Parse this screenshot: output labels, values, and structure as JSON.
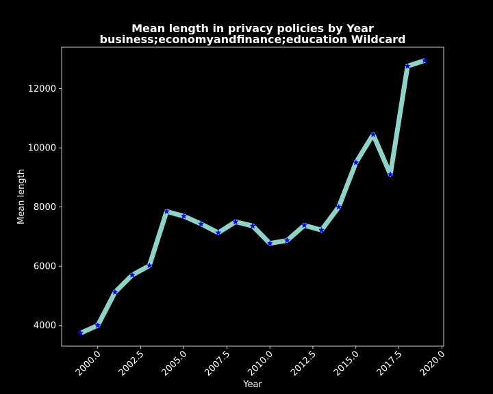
{
  "chart_data": {
    "type": "line",
    "title": "Mean length in privacy policies by Year",
    "subtitle": "business;economyandfinance;education Wildcard",
    "xlabel": "Year",
    "ylabel": "Mean length",
    "xlim": [
      1997.9,
      2020.1
    ],
    "ylim": [
      3300,
      13400
    ],
    "x_ticks": [
      2000.0,
      2002.5,
      2005.0,
      2007.5,
      2010.0,
      2012.5,
      2015.0,
      2017.5,
      2020.0
    ],
    "x_tick_labels": [
      "2000.0",
      "2002.5",
      "2005.0",
      "2007.5",
      "2010.0",
      "2012.5",
      "2015.0",
      "2017.5",
      "2020.0"
    ],
    "y_ticks": [
      4000,
      6000,
      8000,
      10000,
      12000
    ],
    "y_tick_labels": [
      "4000",
      "6000",
      "8000",
      "10000",
      "12000"
    ],
    "grid": false,
    "series": [
      {
        "line_color": "#8dd3c7",
        "marker_color": "#0000ff",
        "marker": "star",
        "x": [
          1999,
          2000,
          2001,
          2002,
          2003,
          2004,
          2005,
          2006,
          2007,
          2008,
          2009,
          2010,
          2011,
          2012,
          2013,
          2014,
          2015,
          2016,
          2017,
          2018,
          2019
        ],
        "y": [
          3740,
          4000,
          5120,
          5700,
          6020,
          7850,
          7690,
          7430,
          7130,
          7500,
          7360,
          6770,
          6870,
          7380,
          7220,
          8000,
          9500,
          10450,
          9100,
          12760,
          12950
        ]
      }
    ]
  }
}
